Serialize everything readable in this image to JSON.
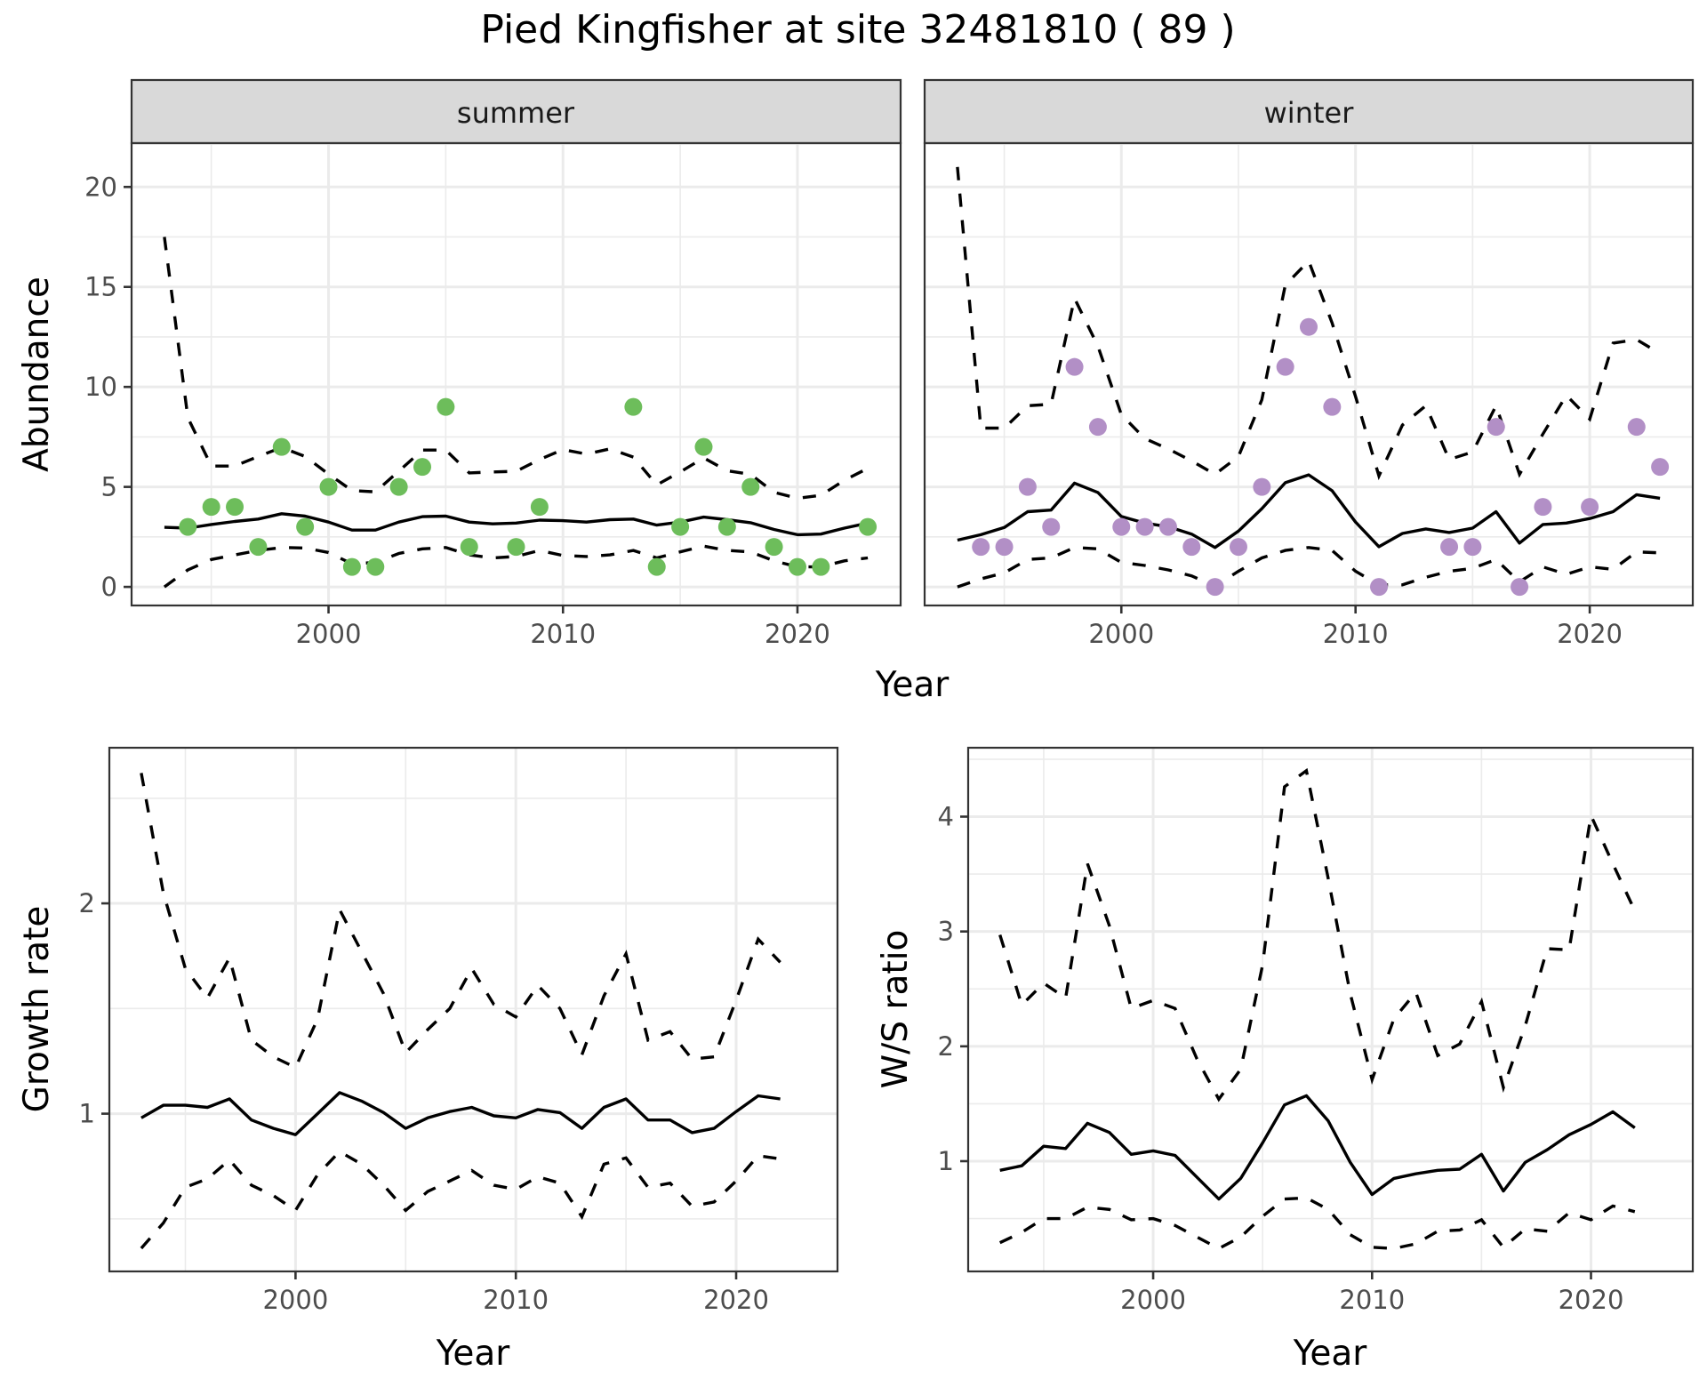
{
  "chart_data": [
    {
      "type": "line",
      "panel": "abundance",
      "title": "Pied Kingfisher at site 32481810 ( 89 )",
      "facets": [
        "summer",
        "winter"
      ],
      "xlabel": "Year",
      "ylabel": "Abundance",
      "xlim": [
        1991.6,
        2024.4
      ],
      "ylim": [
        -0.93,
        22.19
      ],
      "xticks": [
        2000,
        2010,
        2020
      ],
      "yticks": [
        0,
        5,
        10,
        15,
        20
      ],
      "grid": true,
      "series": {
        "summer": {
          "point_color": "#6dbd5b",
          "points": {
            "x": [
              1994,
              1995,
              1996,
              1997,
              1998,
              1999,
              2000,
              2001,
              2002,
              2003,
              2004,
              2005,
              2006,
              2008,
              2009,
              2013,
              2014,
              2015,
              2016,
              2017,
              2018,
              2019,
              2020,
              2021,
              2023
            ],
            "y": [
              3,
              4,
              4,
              2,
              7,
              3,
              5,
              1,
              1,
              5,
              6,
              9,
              2,
              2,
              4,
              9,
              1,
              3,
              7,
              3,
              5,
              2,
              1,
              1,
              3
            ]
          },
          "x": [
            1993,
            1994,
            1995,
            1996,
            1997,
            1998,
            1999,
            2000,
            2001,
            2002,
            2003,
            2004,
            2005,
            2006,
            2007,
            2008,
            2009,
            2010,
            2011,
            2012,
            2013,
            2014,
            2015,
            2016,
            2017,
            2018,
            2019,
            2020,
            2021,
            2022,
            2023
          ],
          "mean": [
            2.98,
            2.94,
            3.12,
            3.27,
            3.39,
            3.66,
            3.54,
            3.24,
            2.84,
            2.84,
            3.24,
            3.51,
            3.54,
            3.24,
            3.15,
            3.19,
            3.34,
            3.31,
            3.24,
            3.36,
            3.39,
            3.09,
            3.24,
            3.49,
            3.36,
            3.21,
            2.87,
            2.61,
            2.64,
            2.94,
            3.19
          ],
          "upper": [
            17.5,
            8.46,
            6.04,
            6.04,
            6.52,
            6.97,
            6.52,
            5.64,
            4.82,
            4.75,
            5.79,
            6.84,
            6.84,
            5.7,
            5.75,
            5.78,
            6.37,
            6.87,
            6.64,
            6.9,
            6.49,
            5.1,
            5.75,
            6.45,
            5.81,
            5.63,
            4.73,
            4.43,
            4.58,
            5.33,
            5.93
          ],
          "lower": [
            0.0,
            0.85,
            1.37,
            1.6,
            1.82,
            1.97,
            1.94,
            1.72,
            1.15,
            1.22,
            1.67,
            1.9,
            1.97,
            1.6,
            1.45,
            1.52,
            1.82,
            1.57,
            1.52,
            1.6,
            1.82,
            1.45,
            1.75,
            2.04,
            1.82,
            1.75,
            1.3,
            1.0,
            1.0,
            1.3,
            1.45
          ]
        },
        "winter": {
          "point_color": "#b28fc6",
          "points": {
            "x": [
              1994,
              1995,
              1996,
              1997,
              1998,
              1999,
              2000,
              2001,
              2002,
              2003,
              2004,
              2005,
              2006,
              2007,
              2008,
              2009,
              2011,
              2014,
              2015,
              2016,
              2017,
              2018,
              2020,
              2022,
              2023
            ],
            "y": [
              2,
              2,
              5,
              3,
              11,
              8,
              3,
              3,
              3,
              2,
              0,
              2,
              5,
              11,
              13,
              9,
              0,
              2,
              2,
              8,
              0,
              4,
              4,
              8,
              6
            ]
          },
          "x": [
            1993,
            1994,
            1995,
            1996,
            1997,
            1998,
            1999,
            2000,
            2001,
            2002,
            2003,
            2004,
            2005,
            2006,
            2007,
            2008,
            2009,
            2010,
            2011,
            2012,
            2013,
            2014,
            2015,
            2016,
            2017,
            2018,
            2019,
            2020,
            2021,
            2022,
            2023
          ],
          "mean": [
            2.34,
            2.61,
            2.97,
            3.76,
            3.84,
            5.19,
            4.72,
            3.52,
            3.19,
            3.01,
            2.64,
            1.97,
            2.79,
            3.91,
            5.21,
            5.6,
            4.81,
            3.24,
            2.01,
            2.67,
            2.9,
            2.72,
            2.94,
            3.76,
            2.19,
            3.12,
            3.19,
            3.42,
            3.76,
            4.61,
            4.43
          ],
          "upper": [
            21.0,
            7.94,
            7.94,
            9.06,
            9.13,
            14.43,
            12.04,
            8.61,
            7.42,
            6.9,
            6.3,
            5.63,
            6.52,
            9.36,
            15.1,
            16.3,
            13.2,
            9.52,
            5.55,
            8.09,
            9.06,
            6.37,
            6.75,
            9.06,
            5.63,
            7.64,
            9.58,
            8.39,
            12.19,
            12.37,
            11.67
          ],
          "lower": [
            0.0,
            0.4,
            0.7,
            1.37,
            1.45,
            1.97,
            1.9,
            1.22,
            1.07,
            0.85,
            0.55,
            0.03,
            0.78,
            1.45,
            1.82,
            1.97,
            1.82,
            0.78,
            0.1,
            0.1,
            0.48,
            0.78,
            0.93,
            1.37,
            0.25,
            1.0,
            0.63,
            1.0,
            0.88,
            1.75,
            1.7
          ]
        }
      }
    },
    {
      "type": "line",
      "panel": "growth-rate",
      "xlabel": "Year",
      "ylabel": "Growth rate",
      "xlim": [
        1991.55,
        2024.6
      ],
      "ylim": [
        0.25,
        2.74
      ],
      "xticks": [
        2000,
        2010,
        2020
      ],
      "yticks": [
        1,
        2
      ],
      "grid": true,
      "x": [
        1993,
        1994,
        1995,
        1996,
        1997,
        1998,
        1999,
        2000,
        2001,
        2002,
        2003,
        2004,
        2005,
        2006,
        2007,
        2008,
        2009,
        2010,
        2011,
        2012,
        2013,
        2014,
        2015,
        2016,
        2017,
        2018,
        2019,
        2020,
        2021,
        2022
      ],
      "mean": [
        0.98,
        1.04,
        1.04,
        1.03,
        1.07,
        0.97,
        0.93,
        0.9,
        1.0,
        1.1,
        1.06,
        1.005,
        0.93,
        0.98,
        1.01,
        1.03,
        0.99,
        0.98,
        1.02,
        1.005,
        0.93,
        1.03,
        1.07,
        0.97,
        0.97,
        0.91,
        0.93,
        1.01,
        1.085,
        1.07
      ],
      "upper": [
        2.62,
        2.05,
        1.69,
        1.55,
        1.74,
        1.35,
        1.27,
        1.22,
        1.45,
        1.97,
        1.77,
        1.57,
        1.29,
        1.4,
        1.5,
        1.69,
        1.52,
        1.46,
        1.61,
        1.5,
        1.28,
        1.56,
        1.76,
        1.35,
        1.39,
        1.26,
        1.27,
        1.54,
        1.83,
        1.72
      ],
      "lower": [
        0.36,
        0.48,
        0.65,
        0.69,
        0.78,
        0.66,
        0.61,
        0.54,
        0.71,
        0.82,
        0.76,
        0.66,
        0.54,
        0.63,
        0.68,
        0.73,
        0.66,
        0.64,
        0.7,
        0.67,
        0.51,
        0.76,
        0.79,
        0.65,
        0.67,
        0.56,
        0.58,
        0.68,
        0.8,
        0.785
      ]
    },
    {
      "type": "line",
      "panel": "ws-ratio",
      "xlabel": "Year",
      "ylabel": "W/S ratio",
      "xlim": [
        1991.55,
        2024.65
      ],
      "ylim": [
        0.04,
        4.6
      ],
      "xticks": [
        2000,
        2010,
        2020
      ],
      "yticks": [
        1,
        2,
        3,
        4
      ],
      "grid": true,
      "x": [
        1993,
        1994,
        1995,
        1996,
        1997,
        1998,
        1999,
        2000,
        2001,
        2002,
        2003,
        2004,
        2005,
        2006,
        2007,
        2008,
        2009,
        2010,
        2011,
        2012,
        2013,
        2014,
        2015,
        2016,
        2017,
        2018,
        2019,
        2020,
        2021,
        2022
      ],
      "mean": [
        0.92,
        0.96,
        1.13,
        1.11,
        1.33,
        1.25,
        1.06,
        1.09,
        1.05,
        0.86,
        0.67,
        0.85,
        1.16,
        1.49,
        1.57,
        1.35,
        0.99,
        0.71,
        0.85,
        0.89,
        0.92,
        0.93,
        1.06,
        0.74,
        0.99,
        1.1,
        1.23,
        1.32,
        1.43,
        1.29
      ],
      "upper": [
        2.97,
        2.36,
        2.55,
        2.42,
        3.59,
        3.05,
        2.33,
        2.4,
        2.33,
        1.89,
        1.54,
        1.8,
        2.71,
        4.26,
        4.4,
        3.46,
        2.46,
        1.71,
        2.24,
        2.47,
        1.92,
        2.02,
        2.39,
        1.64,
        2.18,
        2.85,
        2.84,
        4.01,
        3.59,
        3.18
      ],
      "lower": [
        0.29,
        0.38,
        0.5,
        0.5,
        0.6,
        0.58,
        0.49,
        0.5,
        0.44,
        0.34,
        0.24,
        0.34,
        0.52,
        0.67,
        0.68,
        0.58,
        0.36,
        0.25,
        0.24,
        0.28,
        0.39,
        0.4,
        0.49,
        0.25,
        0.41,
        0.39,
        0.55,
        0.49,
        0.61,
        0.56
      ]
    }
  ]
}
